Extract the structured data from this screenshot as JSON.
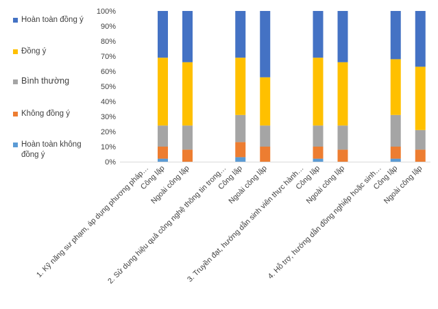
{
  "chart_data": {
    "type": "bar",
    "stacked": true,
    "title": "",
    "xlabel": "",
    "ylabel": "",
    "ylim": [
      0,
      100
    ],
    "yticks": [
      "0%",
      "10%",
      "20%",
      "30%",
      "40%",
      "50%",
      "60%",
      "70%",
      "80%",
      "90%",
      "100%"
    ],
    "groups": [
      {
        "label": "1. Kỹ năng sư phạm, áp dụng phương pháp…",
        "categories": [
          "Công lập",
          "Ngoài công lập"
        ]
      },
      {
        "label": "2. Sử dụng hiệu quả công nghệ thông tin trong…",
        "categories": [
          "Công lập",
          "Ngoài công lập"
        ]
      },
      {
        "label": "3. Truyền đạt, hướng dẫn sinh viên thực hành…",
        "categories": [
          "Công lập",
          "Ngoài công lập"
        ]
      },
      {
        "label": "4. Hỗ trợ, hướng dẫn đồng nghiệp hoặc sinh…",
        "categories": [
          "Công lập",
          "Ngoài công lập"
        ]
      }
    ],
    "series": [
      {
        "name": "Hoàn toàn không đồng ý",
        "color": "#5b9bd5",
        "values": [
          2,
          0,
          3,
          0,
          2,
          0,
          2,
          0
        ]
      },
      {
        "name": "Không đồng ý",
        "color": "#ed7d31",
        "values": [
          8,
          8,
          10,
          10,
          8,
          8,
          8,
          8
        ]
      },
      {
        "name": "Bình thường",
        "color": "#a5a5a5",
        "values": [
          14,
          16,
          18,
          14,
          14,
          16,
          21,
          13
        ]
      },
      {
        "name": "Đồng ý",
        "color": "#ffc000",
        "values": [
          45,
          42,
          38,
          32,
          45,
          42,
          37,
          42
        ]
      },
      {
        "name": "Hoàn toàn đồng ý",
        "color": "#4472c4",
        "values": [
          31,
          34,
          31,
          44,
          31,
          34,
          32,
          37
        ]
      }
    ],
    "legend": {
      "position": "left",
      "order": [
        "Hoàn toàn đồng ý",
        "Đồng ý",
        "Bình thường",
        "Không đồng ý",
        "Hoàn toàn không đồng ý"
      ]
    }
  }
}
